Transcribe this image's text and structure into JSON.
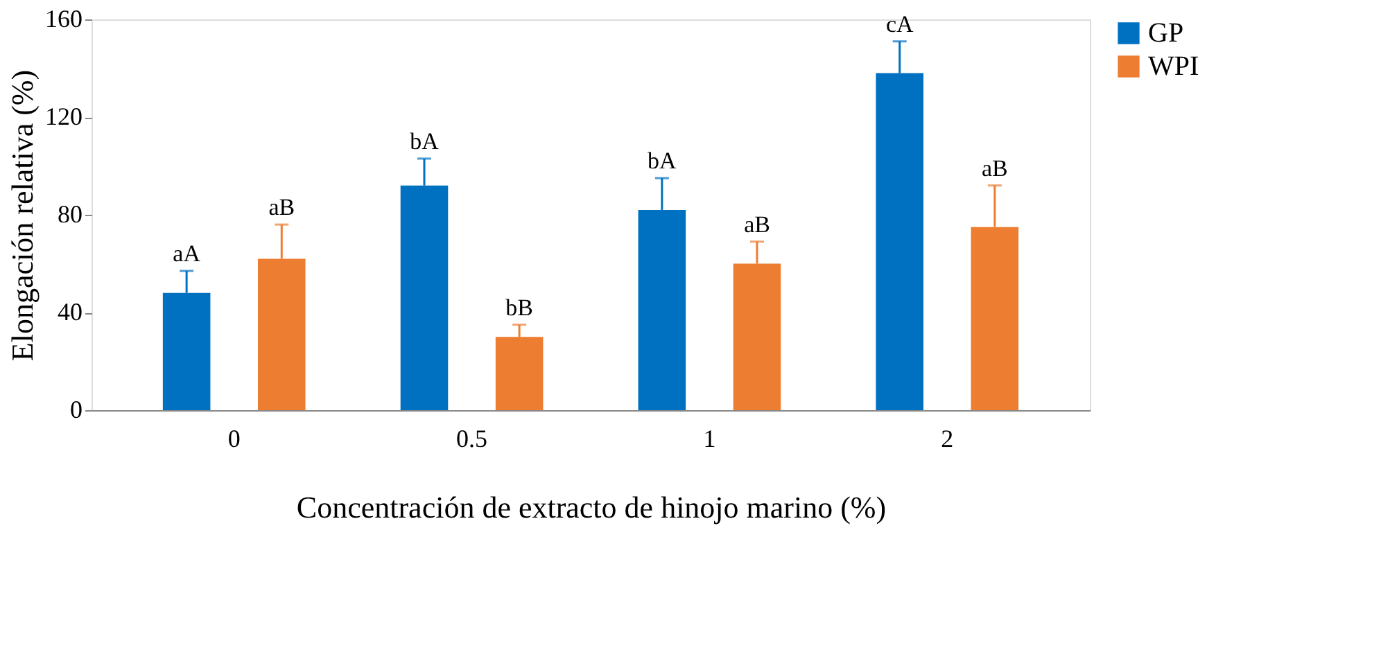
{
  "chart_data": {
    "type": "bar",
    "xlabel": "Concentración de  extracto de hinojo marino (%)",
    "ylabel": "Elongación relativa (%)",
    "categories": [
      "0",
      "0.5",
      "1",
      "2"
    ],
    "series": [
      {
        "name": "GP",
        "color": "#0070c0",
        "values": [
          48,
          92,
          82,
          138
        ],
        "errors": [
          [
            48,
            57
          ],
          [
            92,
            103
          ],
          [
            82,
            95
          ],
          [
            138,
            151
          ]
        ]
      },
      {
        "name": "WPI",
        "color": "#ed7d31",
        "values": [
          62,
          30,
          60,
          75
        ],
        "errors": [
          [
            62,
            76
          ],
          [
            30,
            35
          ],
          [
            60,
            69
          ],
          [
            75,
            92
          ]
        ]
      }
    ],
    "ylim": [
      0,
      160
    ],
    "yticks": [
      0,
      40,
      80,
      120,
      160
    ],
    "grid": false,
    "legend": "right",
    "annotations": [
      "aA",
      "aB",
      "bA",
      "bB",
      "bA",
      "aB",
      "cA",
      "aB"
    ]
  }
}
